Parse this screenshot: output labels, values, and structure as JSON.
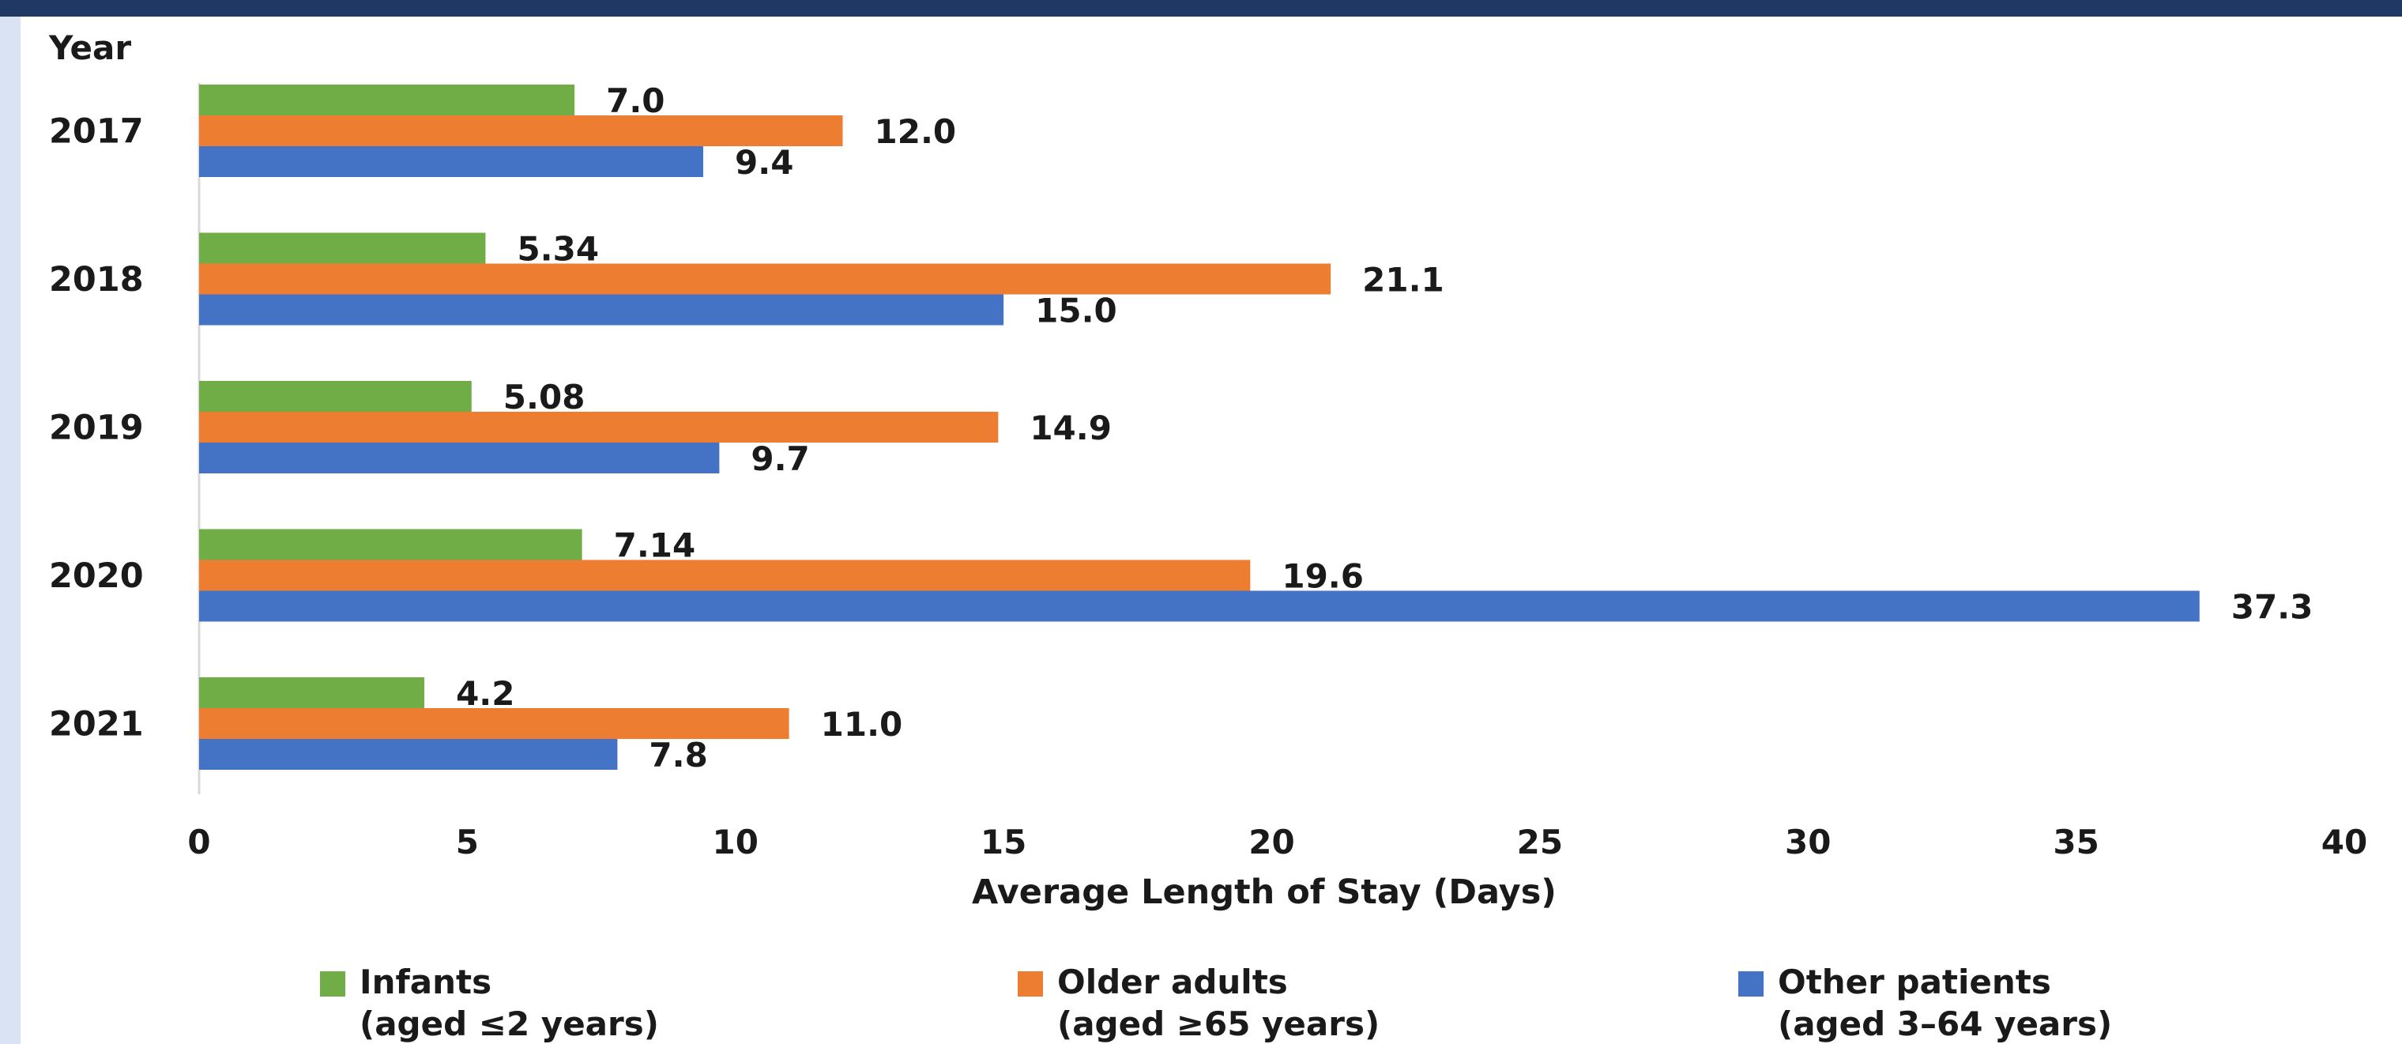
{
  "chart_data": {
    "type": "bar",
    "orientation": "horizontal",
    "y_axis_title": "Year",
    "xlabel": "Average Length of Stay (Days)",
    "categories": [
      "2017",
      "2018",
      "2019",
      "2020",
      "2021"
    ],
    "xlim": [
      0,
      40
    ],
    "x_ticks": [
      0,
      5,
      10,
      15,
      20,
      25,
      30,
      35,
      40
    ],
    "grid": false,
    "legend_position": "bottom",
    "series": [
      {
        "name": "Infants",
        "name_detail": "(aged ≤2 years)",
        "color": "#70ad47",
        "values": [
          7.0,
          5.34,
          5.08,
          7.14,
          4.2
        ],
        "labels": [
          "7.0",
          "5.34",
          "5.08",
          "7.14",
          "4.2"
        ]
      },
      {
        "name": "Older adults",
        "name_detail": "(aged ≥65 years)",
        "color": "#ed7d31",
        "values": [
          12.0,
          21.1,
          14.9,
          19.6,
          11.0
        ],
        "labels": [
          "12.0",
          "21.1",
          "14.9",
          "19.6",
          "11.0"
        ]
      },
      {
        "name": "Other patients",
        "name_detail": "(aged 3–64 years)",
        "color": "#4472c4",
        "values": [
          9.4,
          15.0,
          9.7,
          37.3,
          7.8
        ],
        "labels": [
          "9.4",
          "15.0",
          "9.7",
          "37.3",
          "7.8"
        ]
      }
    ]
  },
  "colors": {
    "header_bar": "#1f3864",
    "left_strip": "#dae3f3",
    "axis_line": "#d9d9d9"
  }
}
